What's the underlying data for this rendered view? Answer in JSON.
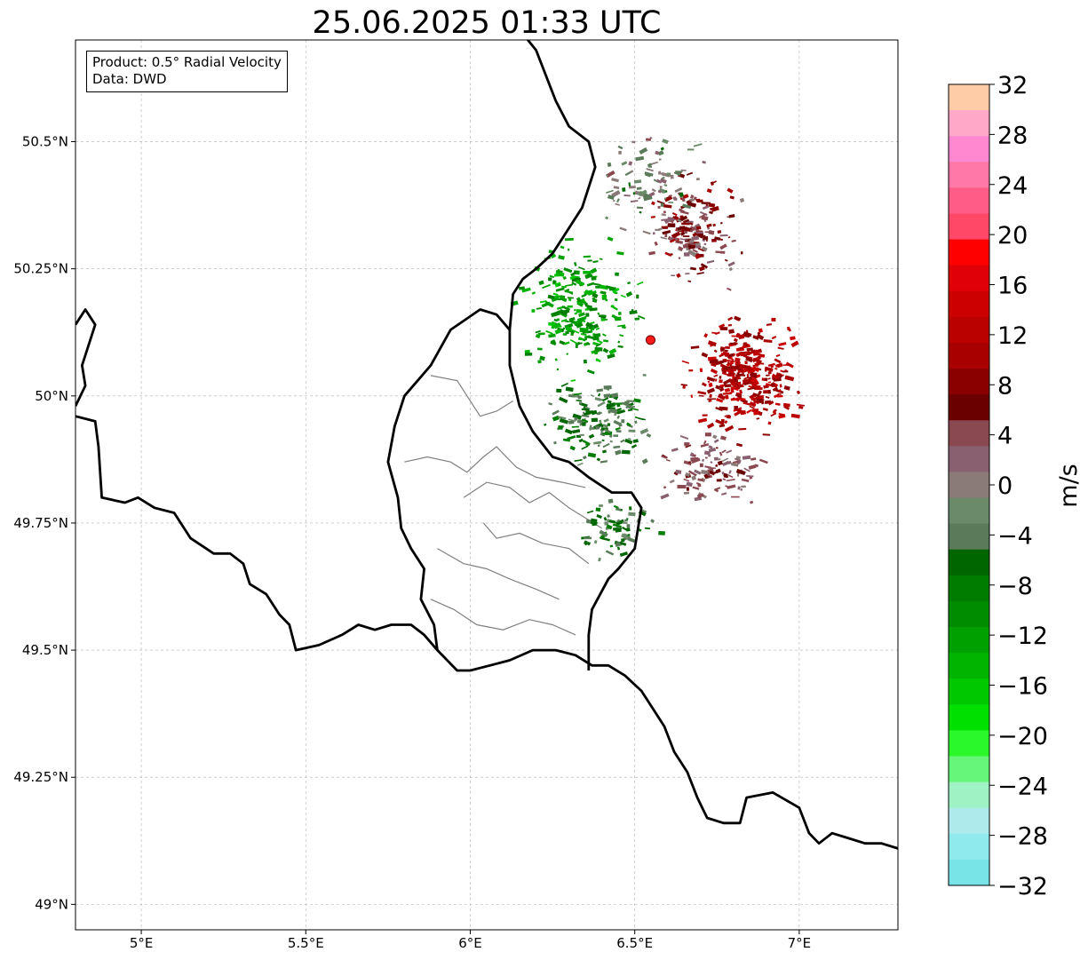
{
  "title": "25.06.2025 01:33 UTC",
  "infobox": {
    "product": "Product: 0.5° Radial Velocity",
    "data": "Data: DWD"
  },
  "map": {
    "lon_range": [
      4.8,
      7.3
    ],
    "lat_range": [
      48.95,
      50.7
    ],
    "x_ticks": [
      {
        "value": 5.0,
        "label": "5°E"
      },
      {
        "value": 5.5,
        "label": "5.5°E"
      },
      {
        "value": 6.0,
        "label": "6°E"
      },
      {
        "value": 6.5,
        "label": "6.5°E"
      },
      {
        "value": 7.0,
        "label": "7°E"
      }
    ],
    "y_ticks": [
      {
        "value": 49.0,
        "label": "49°N"
      },
      {
        "value": 49.25,
        "label": "49.25°N"
      },
      {
        "value": 49.5,
        "label": "49.5°N"
      },
      {
        "value": 49.75,
        "label": "49.75°N"
      },
      {
        "value": 50.0,
        "label": "50°N"
      },
      {
        "value": 50.25,
        "label": "50.25°N"
      },
      {
        "value": 50.5,
        "label": "50.5°N"
      }
    ],
    "grid": true,
    "radar_site": {
      "lon": 6.548,
      "lat": 50.11,
      "color": "#ff1a1a"
    },
    "borders": [
      [
        [
          4.8,
          50.14
        ],
        [
          4.83,
          50.17
        ],
        [
          4.86,
          50.14
        ],
        [
          4.84,
          50.1
        ],
        [
          4.82,
          50.06
        ],
        [
          4.83,
          50.02
        ],
        [
          4.8,
          49.98
        ]
      ],
      [
        [
          4.8,
          49.96
        ],
        [
          4.86,
          49.95
        ],
        [
          4.87,
          49.9
        ],
        [
          4.88,
          49.8
        ],
        [
          4.95,
          49.79
        ],
        [
          4.99,
          49.8
        ],
        [
          5.04,
          49.78
        ],
        [
          5.1,
          49.77
        ],
        [
          5.15,
          49.72
        ],
        [
          5.22,
          49.69
        ],
        [
          5.27,
          49.69
        ],
        [
          5.31,
          49.67
        ],
        [
          5.33,
          49.63
        ],
        [
          5.38,
          49.61
        ],
        [
          5.42,
          49.57
        ],
        [
          5.45,
          49.55
        ],
        [
          5.47,
          49.5
        ],
        [
          5.54,
          49.51
        ],
        [
          5.61,
          49.53
        ],
        [
          5.66,
          49.55
        ],
        [
          5.71,
          49.54
        ],
        [
          5.76,
          49.55
        ],
        [
          5.82,
          49.55
        ],
        [
          5.86,
          49.53
        ],
        [
          5.9,
          49.5
        ],
        [
          5.96,
          49.46
        ],
        [
          6.0,
          49.46
        ],
        [
          6.06,
          49.47
        ],
        [
          6.12,
          49.48
        ],
        [
          6.19,
          49.5
        ],
        [
          6.26,
          49.5
        ],
        [
          6.32,
          49.49
        ],
        [
          6.37,
          49.47
        ],
        [
          6.42,
          49.47
        ],
        [
          6.47,
          49.45
        ],
        [
          6.52,
          49.42
        ],
        [
          6.56,
          49.38
        ],
        [
          6.59,
          49.35
        ],
        [
          6.62,
          49.3
        ],
        [
          6.66,
          49.26
        ],
        [
          6.69,
          49.21
        ],
        [
          6.72,
          49.17
        ],
        [
          6.77,
          49.16
        ],
        [
          6.82,
          49.16
        ],
        [
          6.84,
          49.21
        ],
        [
          6.92,
          49.22
        ],
        [
          7.0,
          49.19
        ],
        [
          7.03,
          49.14
        ],
        [
          7.06,
          49.12
        ],
        [
          7.1,
          49.14
        ],
        [
          7.15,
          49.13
        ],
        [
          7.2,
          49.12
        ],
        [
          7.25,
          49.12
        ],
        [
          7.3,
          49.11
        ]
      ],
      [
        [
          6.36,
          49.46
        ],
        [
          6.36,
          49.53
        ],
        [
          6.37,
          49.58
        ],
        [
          6.42,
          49.64
        ],
        [
          6.45,
          49.66
        ],
        [
          6.5,
          49.7
        ],
        [
          6.51,
          49.74
        ],
        [
          6.52,
          49.78
        ],
        [
          6.49,
          49.81
        ],
        [
          6.43,
          49.81
        ],
        [
          6.36,
          49.84
        ],
        [
          6.3,
          49.87
        ],
        [
          6.25,
          49.88
        ],
        [
          6.19,
          49.93
        ],
        [
          6.15,
          49.98
        ],
        [
          6.12,
          50.06
        ],
        [
          6.12,
          50.13
        ],
        [
          6.13,
          50.2
        ],
        [
          6.16,
          50.23
        ],
        [
          6.2,
          50.25
        ],
        [
          6.25,
          50.28
        ],
        [
          6.29,
          50.32
        ],
        [
          6.34,
          50.37
        ],
        [
          6.38,
          50.45
        ],
        [
          6.36,
          50.5
        ],
        [
          6.3,
          50.53
        ],
        [
          6.26,
          50.58
        ],
        [
          6.23,
          50.63
        ],
        [
          6.2,
          50.68
        ],
        [
          6.15,
          50.72
        ]
      ],
      [
        [
          5.9,
          49.5
        ],
        [
          5.89,
          49.55
        ],
        [
          5.85,
          49.6
        ],
        [
          5.86,
          49.66
        ],
        [
          5.82,
          49.7
        ],
        [
          5.79,
          49.74
        ],
        [
          5.78,
          49.8
        ],
        [
          5.75,
          49.87
        ],
        [
          5.77,
          49.94
        ],
        [
          5.8,
          50.0
        ],
        [
          5.88,
          50.06
        ],
        [
          5.94,
          50.13
        ],
        [
          6.03,
          50.17
        ],
        [
          6.08,
          50.16
        ],
        [
          6.12,
          50.13
        ]
      ]
    ],
    "admin_lines": [
      [
        [
          5.88,
          50.04
        ],
        [
          5.96,
          50.03
        ],
        [
          6.03,
          49.96
        ],
        [
          6.08,
          49.97
        ],
        [
          6.13,
          49.99
        ]
      ],
      [
        [
          5.8,
          49.87
        ],
        [
          5.87,
          49.88
        ],
        [
          5.94,
          49.87
        ],
        [
          5.99,
          49.85
        ],
        [
          6.04,
          49.88
        ],
        [
          6.08,
          49.9
        ],
        [
          6.14,
          49.86
        ],
        [
          6.2,
          49.84
        ],
        [
          6.28,
          49.83
        ],
        [
          6.35,
          49.82
        ]
      ],
      [
        [
          5.98,
          49.8
        ],
        [
          6.05,
          49.83
        ],
        [
          6.12,
          49.82
        ],
        [
          6.18,
          49.79
        ],
        [
          6.24,
          49.81
        ],
        [
          6.3,
          49.78
        ],
        [
          6.35,
          49.76
        ],
        [
          6.4,
          49.74
        ]
      ],
      [
        [
          6.04,
          49.75
        ],
        [
          6.08,
          49.72
        ],
        [
          6.15,
          49.73
        ],
        [
          6.22,
          49.71
        ],
        [
          6.3,
          49.7
        ],
        [
          6.36,
          49.67
        ]
      ],
      [
        [
          5.9,
          49.7
        ],
        [
          5.98,
          49.67
        ],
        [
          6.05,
          49.66
        ],
        [
          6.12,
          49.64
        ],
        [
          6.2,
          49.62
        ],
        [
          6.27,
          49.6
        ]
      ],
      [
        [
          5.88,
          49.6
        ],
        [
          5.95,
          49.58
        ],
        [
          6.02,
          49.55
        ],
        [
          6.1,
          49.54
        ],
        [
          6.18,
          49.56
        ],
        [
          6.25,
          49.55
        ],
        [
          6.32,
          49.53
        ]
      ]
    ]
  },
  "radar": {
    "product": "0.5° Radial Velocity",
    "unit": "m/s",
    "center": {
      "lon": 6.548,
      "lat": 50.11
    },
    "echo_regions": [
      {
        "lon": 6.83,
        "lat": 50.04,
        "spread_lon": 0.13,
        "spread_lat": 0.09,
        "count": 330,
        "velocity": [
          8,
          14
        ]
      },
      {
        "lon": 6.68,
        "lat": 50.33,
        "spread_lon": 0.11,
        "spread_lat": 0.09,
        "count": 160,
        "velocity": [
          0,
          10
        ]
      },
      {
        "lon": 6.74,
        "lat": 49.86,
        "spread_lon": 0.12,
        "spread_lat": 0.05,
        "count": 110,
        "velocity": [
          0,
          6
        ]
      },
      {
        "lon": 6.34,
        "lat": 50.17,
        "spread_lon": 0.14,
        "spread_lat": 0.1,
        "count": 230,
        "velocity": [
          -16,
          -8
        ]
      },
      {
        "lon": 6.4,
        "lat": 49.95,
        "spread_lon": 0.13,
        "spread_lat": 0.07,
        "count": 150,
        "velocity": [
          -8,
          -2
        ]
      },
      {
        "lon": 6.45,
        "lat": 49.74,
        "spread_lon": 0.1,
        "spread_lat": 0.05,
        "count": 70,
        "velocity": [
          -8,
          -2
        ]
      },
      {
        "lon": 6.55,
        "lat": 50.42,
        "spread_lon": 0.14,
        "spread_lat": 0.08,
        "count": 90,
        "velocity": [
          -6,
          4
        ]
      }
    ]
  },
  "colorbar": {
    "label": "m/s",
    "vmin": -32,
    "vmax": 32,
    "ticks": [
      32,
      28,
      24,
      20,
      16,
      12,
      8,
      4,
      0,
      -4,
      -8,
      -12,
      -16,
      -20,
      -24,
      -28,
      -32
    ],
    "tick_labels": [
      "32",
      "28",
      "24",
      "20",
      "16",
      "12",
      "8",
      "4",
      "0",
      "−4",
      "−8",
      "−12",
      "−16",
      "−20",
      "−24",
      "−28",
      "−32"
    ],
    "colors": [
      "#ffcca8",
      "#ffa8c8",
      "#ff88d0",
      "#ff78a8",
      "#ff5c88",
      "#ff4868",
      "#ff0000",
      "#e00008",
      "#cc0000",
      "#bb0000",
      "#a80000",
      "#8a0000",
      "#6a0000",
      "#8a4850",
      "#886070",
      "#8a7a78",
      "#6a8a6a",
      "#5a7a5a",
      "#006600",
      "#007d00",
      "#008c00",
      "#00a000",
      "#00b400",
      "#00c800",
      "#00e000",
      "#2af82a",
      "#66f77a",
      "#9ef2c4",
      "#aeeaec",
      "#8eeaec",
      "#78e4e8"
    ]
  }
}
